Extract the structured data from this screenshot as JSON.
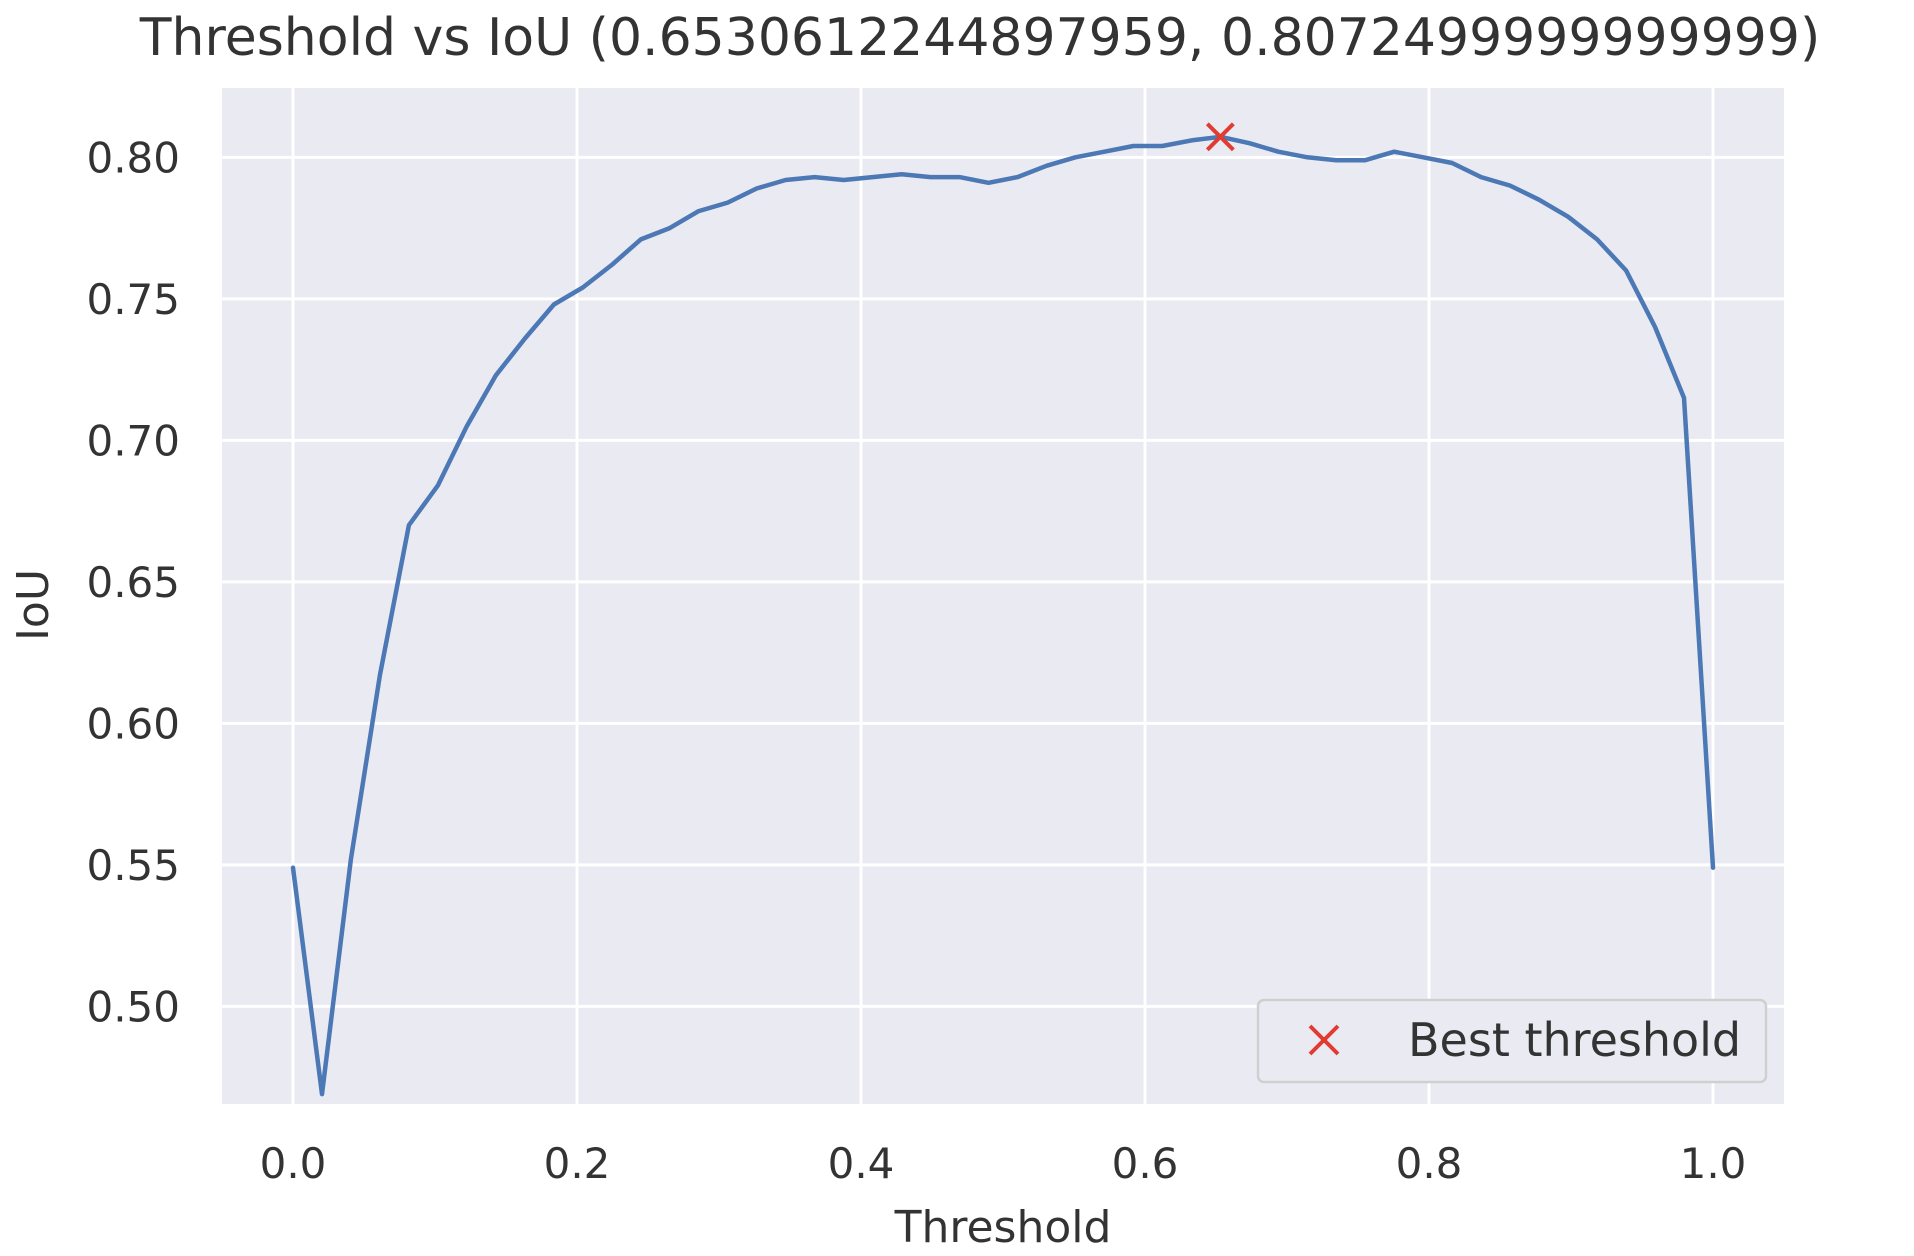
{
  "chart_data": {
    "type": "line",
    "title": "Threshold vs IoU (0.6530612244897959, 0.8072499999999999)",
    "xlabel": "Threshold",
    "ylabel": "IoU",
    "xlim": [
      -0.05,
      1.05
    ],
    "ylim": [
      0.4655,
      0.8245
    ],
    "xticks": [
      0.0,
      0.2,
      0.4,
      0.6,
      0.8,
      1.0
    ],
    "xtick_labels": [
      "0.0",
      "0.2",
      "0.4",
      "0.6",
      "0.8",
      "1.0"
    ],
    "yticks": [
      0.5,
      0.55,
      0.6,
      0.65,
      0.7,
      0.75,
      0.8
    ],
    "ytick_labels": [
      "0.50",
      "0.55",
      "0.60",
      "0.65",
      "0.70",
      "0.75",
      "0.80"
    ],
    "grid": true,
    "legend_position": "lower-right",
    "series": [
      {
        "kind": "line",
        "color": "#4c78b5",
        "x": [
          0.0,
          0.0204,
          0.0408,
          0.0612,
          0.0816,
          0.102,
          0.1224,
          0.1429,
          0.1633,
          0.1837,
          0.2041,
          0.2245,
          0.2449,
          0.2653,
          0.2857,
          0.3061,
          0.3265,
          0.3469,
          0.3673,
          0.3878,
          0.4082,
          0.4286,
          0.449,
          0.4694,
          0.4898,
          0.5102,
          0.5306,
          0.551,
          0.5714,
          0.5918,
          0.6122,
          0.6327,
          0.6531,
          0.6735,
          0.6939,
          0.7143,
          0.7347,
          0.7551,
          0.7755,
          0.7959,
          0.8163,
          0.8367,
          0.8571,
          0.8776,
          0.898,
          0.9184,
          0.9388,
          0.9592,
          0.9796,
          1.0
        ],
        "y": [
          0.549,
          0.469,
          0.552,
          0.617,
          0.67,
          0.684,
          0.705,
          0.723,
          0.736,
          0.748,
          0.754,
          0.762,
          0.771,
          0.775,
          0.781,
          0.784,
          0.789,
          0.792,
          0.793,
          0.792,
          0.793,
          0.794,
          0.793,
          0.793,
          0.791,
          0.793,
          0.797,
          0.8,
          0.802,
          0.804,
          0.804,
          0.806,
          0.80725,
          0.805,
          0.802,
          0.8,
          0.799,
          0.799,
          0.802,
          0.8,
          0.798,
          0.793,
          0.79,
          0.785,
          0.779,
          0.771,
          0.76,
          0.74,
          0.715,
          0.549
        ]
      },
      {
        "kind": "marker",
        "name": "Best threshold",
        "marker": "x",
        "color": "#e03c31",
        "x": [
          0.6530612244897959
        ],
        "y": [
          0.8072499999999999
        ]
      }
    ]
  },
  "style": {
    "plot_background": "#eaeaf2",
    "grid_color": "#ffffff",
    "text_color": "#333333",
    "legend_background": "#eaeaf2",
    "legend_border": "#cfcfcf"
  }
}
